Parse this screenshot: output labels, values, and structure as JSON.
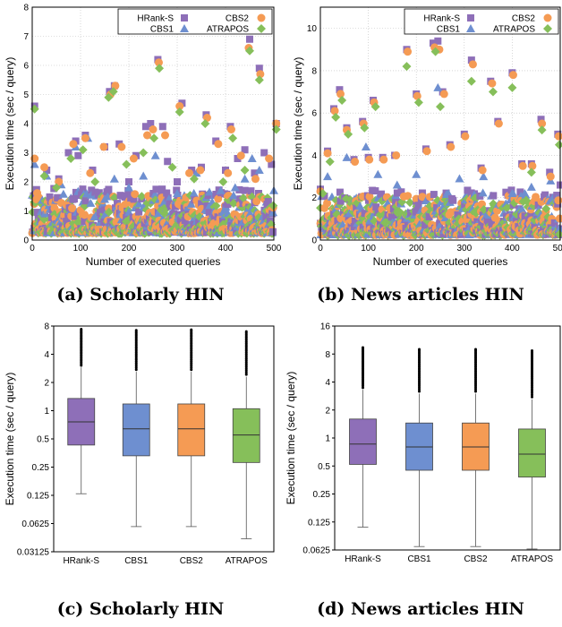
{
  "captions": {
    "a": "(a) Scholarly HIN",
    "b": "(b) News articles HIN",
    "c": "(c) Scholarly HIN",
    "d": "(d) News articles HIN"
  },
  "colors": {
    "HRank-S": "#8e6fb8",
    "CBS1": "#6e8fd0",
    "CBS2": "#f59b54",
    "ATRAPOS": "#86bf5a",
    "grid": "#bdbdbd"
  },
  "chart_data": [
    {
      "id": "a",
      "type": "scatter",
      "xlabel": "Number of executed queries",
      "ylabel": "Execution time (sec / query)",
      "xlim": [
        0,
        500
      ],
      "ylim": [
        0,
        8
      ],
      "xticks": [
        0,
        100,
        200,
        300,
        400,
        500
      ],
      "yticks": [
        0,
        1,
        2,
        3,
        4,
        5,
        6,
        7,
        8
      ],
      "grid": true,
      "legend_position": "top-right",
      "series": [
        {
          "name": "HRank-S",
          "marker": "square",
          "points": [
            [
              5,
              4.6
            ],
            [
              30,
              2.4
            ],
            [
              55,
              2.1
            ],
            [
              75,
              3.0
            ],
            [
              90,
              3.4
            ],
            [
              95,
              2.9
            ],
            [
              110,
              3.6
            ],
            [
              125,
              2.4
            ],
            [
              150,
              3.2
            ],
            [
              160,
              5.1
            ],
            [
              170,
              5.3
            ],
            [
              180,
              3.3
            ],
            [
              200,
              2.0
            ],
            [
              215,
              2.9
            ],
            [
              235,
              3.9
            ],
            [
              245,
              4.0
            ],
            [
              260,
              6.2
            ],
            [
              270,
              3.9
            ],
            [
              280,
              2.7
            ],
            [
              300,
              2.0
            ],
            [
              310,
              4.7
            ],
            [
              330,
              2.4
            ],
            [
              350,
              2.5
            ],
            [
              360,
              4.3
            ],
            [
              380,
              3.4
            ],
            [
              400,
              2.4
            ],
            [
              410,
              3.9
            ],
            [
              425,
              2.8
            ],
            [
              440,
              3.1
            ],
            [
              450,
              6.9
            ],
            [
              460,
              2.3
            ],
            [
              470,
              5.9
            ],
            [
              480,
              3.0
            ],
            [
              495,
              2.6
            ],
            [
              505,
              4.0
            ]
          ]
        },
        {
          "name": "CBS1",
          "marker": "triangle",
          "points": [
            [
              5,
              2.6
            ],
            [
              30,
              2.2
            ],
            [
              60,
              1.9
            ],
            [
              90,
              3.2
            ],
            [
              115,
              3.5
            ],
            [
              150,
              1.4
            ],
            [
              170,
              2.1
            ],
            [
              200,
              1.8
            ],
            [
              230,
              2.2
            ],
            [
              255,
              2.9
            ],
            [
              300,
              1.6
            ],
            [
              340,
              2.3
            ],
            [
              390,
              1.7
            ],
            [
              420,
              1.8
            ],
            [
              440,
              2.1
            ],
            [
              455,
              2.8
            ],
            [
              470,
              2.4
            ],
            [
              500,
              1.7
            ]
          ]
        },
        {
          "name": "CBS2",
          "marker": "circle",
          "points": [
            [
              5,
              2.8
            ],
            [
              25,
              2.5
            ],
            [
              55,
              2.0
            ],
            [
              85,
              3.3
            ],
            [
              110,
              3.5
            ],
            [
              120,
              2.3
            ],
            [
              148,
              3.2
            ],
            [
              162,
              5.0
            ],
            [
              172,
              5.3
            ],
            [
              185,
              3.2
            ],
            [
              210,
              2.8
            ],
            [
              238,
              3.6
            ],
            [
              250,
              3.8
            ],
            [
              262,
              6.1
            ],
            [
              275,
              3.6
            ],
            [
              305,
              4.6
            ],
            [
              325,
              2.3
            ],
            [
              348,
              2.4
            ],
            [
              362,
              4.2
            ],
            [
              385,
              3.3
            ],
            [
              405,
              2.3
            ],
            [
              412,
              3.8
            ],
            [
              432,
              2.9
            ],
            [
              448,
              6.6
            ],
            [
              462,
              2.1
            ],
            [
              472,
              5.7
            ],
            [
              490,
              2.8
            ],
            [
              505,
              4.0
            ]
          ]
        },
        {
          "name": "ATRAPOS",
          "marker": "diamond",
          "points": [
            [
              5,
              4.5
            ],
            [
              25,
              2.2
            ],
            [
              50,
              1.8
            ],
            [
              80,
              2.8
            ],
            [
              105,
              3.1
            ],
            [
              130,
              2.0
            ],
            [
              158,
              4.9
            ],
            [
              168,
              5.1
            ],
            [
              195,
              2.6
            ],
            [
              230,
              3.0
            ],
            [
              252,
              3.5
            ],
            [
              263,
              5.9
            ],
            [
              290,
              2.5
            ],
            [
              305,
              4.4
            ],
            [
              335,
              2.1
            ],
            [
              358,
              4.0
            ],
            [
              395,
              2.0
            ],
            [
              415,
              3.5
            ],
            [
              440,
              2.4
            ],
            [
              450,
              6.5
            ],
            [
              470,
              5.5
            ],
            [
              505,
              3.8
            ]
          ]
        }
      ]
    },
    {
      "id": "b",
      "type": "scatter",
      "xlabel": "Number of executed queries",
      "ylabel": "Execution time (sec / query)",
      "xlim": [
        0,
        500
      ],
      "ylim": [
        0,
        11
      ],
      "xticks": [
        0,
        100,
        200,
        300,
        400,
        500
      ],
      "yticks": [
        0,
        2,
        4,
        6,
        8,
        10
      ],
      "grid": true,
      "legend_position": "top-right",
      "series": [
        {
          "name": "HRank-S",
          "marker": "square",
          "points": [
            [
              0,
              2.4
            ],
            [
              15,
              4.2
            ],
            [
              28,
              6.2
            ],
            [
              40,
              7.1
            ],
            [
              55,
              5.3
            ],
            [
              70,
              3.8
            ],
            [
              88,
              5.6
            ],
            [
              100,
              3.9
            ],
            [
              110,
              6.6
            ],
            [
              130,
              3.9
            ],
            [
              155,
              4.0
            ],
            [
              180,
              9.0
            ],
            [
              200,
              6.9
            ],
            [
              220,
              4.3
            ],
            [
              235,
              9.3
            ],
            [
              245,
              9.4
            ],
            [
              255,
              7.0
            ],
            [
              270,
              4.5
            ],
            [
              300,
              5.0
            ],
            [
              315,
              8.5
            ],
            [
              335,
              3.4
            ],
            [
              355,
              7.5
            ],
            [
              370,
              5.6
            ],
            [
              400,
              7.9
            ],
            [
              420,
              3.6
            ],
            [
              440,
              3.6
            ],
            [
              460,
              5.7
            ],
            [
              478,
              3.2
            ],
            [
              495,
              5.0
            ],
            [
              500,
              2.6
            ]
          ]
        },
        {
          "name": "CBS1",
          "marker": "triangle",
          "points": [
            [
              15,
              3.0
            ],
            [
              55,
              3.9
            ],
            [
              95,
              4.4
            ],
            [
              120,
              3.1
            ],
            [
              160,
              2.6
            ],
            [
              200,
              3.1
            ],
            [
              245,
              7.2
            ],
            [
              290,
              2.9
            ],
            [
              340,
              3.0
            ],
            [
              400,
              2.2
            ],
            [
              440,
              2.5
            ],
            [
              480,
              2.8
            ]
          ]
        },
        {
          "name": "CBS2",
          "marker": "circle",
          "points": [
            [
              0,
              2.3
            ],
            [
              15,
              4.1
            ],
            [
              30,
              6.1
            ],
            [
              42,
              6.9
            ],
            [
              55,
              5.2
            ],
            [
              72,
              3.7
            ],
            [
              90,
              5.5
            ],
            [
              102,
              3.8
            ],
            [
              112,
              6.5
            ],
            [
              132,
              3.8
            ],
            [
              158,
              4.0
            ],
            [
              182,
              8.9
            ],
            [
              202,
              6.8
            ],
            [
              222,
              4.2
            ],
            [
              238,
              9.1
            ],
            [
              248,
              9.0
            ],
            [
              258,
              6.9
            ],
            [
              272,
              4.4
            ],
            [
              302,
              4.9
            ],
            [
              318,
              8.3
            ],
            [
              338,
              3.3
            ],
            [
              358,
              7.4
            ],
            [
              372,
              5.5
            ],
            [
              402,
              7.8
            ],
            [
              422,
              3.5
            ],
            [
              442,
              3.5
            ],
            [
              462,
              5.5
            ],
            [
              480,
              3.0
            ],
            [
              497,
              4.9
            ]
          ]
        },
        {
          "name": "ATRAPOS",
          "marker": "diamond",
          "points": [
            [
              5,
              2.2
            ],
            [
              20,
              3.7
            ],
            [
              32,
              5.8
            ],
            [
              45,
              6.6
            ],
            [
              58,
              5.0
            ],
            [
              92,
              5.3
            ],
            [
              115,
              6.3
            ],
            [
              180,
              8.2
            ],
            [
              205,
              6.5
            ],
            [
              240,
              8.9
            ],
            [
              250,
              6.3
            ],
            [
              315,
              7.5
            ],
            [
              360,
              7.0
            ],
            [
              400,
              7.2
            ],
            [
              440,
              3.2
            ],
            [
              462,
              5.2
            ],
            [
              498,
              4.5
            ]
          ]
        }
      ]
    },
    {
      "id": "c",
      "type": "box",
      "ylabel": "Execution time (sec / query)",
      "yscale": "log2",
      "ylim": [
        0.03125,
        8
      ],
      "yticks": [
        "0.03125",
        "0.0625",
        "0.125",
        "0.25",
        "0.5",
        "1",
        "2",
        "4",
        "8"
      ],
      "categories": [
        "HRank-S",
        "CBS1",
        "CBS2",
        "ATRAPOS"
      ],
      "grid": false,
      "boxes": [
        {
          "name": "HRank-S",
          "whisker_low": 0.13,
          "q1": 0.43,
          "median": 0.76,
          "q3": 1.35,
          "whisker_high": 2.9,
          "outlier_max": 7.4
        },
        {
          "name": "CBS1",
          "whisker_low": 0.058,
          "q1": 0.33,
          "median": 0.64,
          "q3": 1.18,
          "whisker_high": 2.6,
          "outlier_max": 7.2
        },
        {
          "name": "CBS2",
          "whisker_low": 0.058,
          "q1": 0.33,
          "median": 0.64,
          "q3": 1.18,
          "whisker_high": 2.6,
          "outlier_max": 7.3
        },
        {
          "name": "ATRAPOS",
          "whisker_low": 0.043,
          "q1": 0.28,
          "median": 0.55,
          "q3": 1.05,
          "whisker_high": 2.3,
          "outlier_max": 7.0
        }
      ]
    },
    {
      "id": "d",
      "type": "box",
      "ylabel": "Execution time (sec / query)",
      "yscale": "log2",
      "ylim": [
        0.0625,
        16
      ],
      "yticks": [
        "0.0625",
        "0.125",
        "0.25",
        "0.5",
        "1",
        "2",
        "4",
        "8",
        "16"
      ],
      "categories": [
        "HRank-S",
        "CBS1",
        "CBS2",
        "ATRAPOS"
      ],
      "grid": false,
      "boxes": [
        {
          "name": "HRank-S",
          "whisker_low": 0.11,
          "q1": 0.52,
          "median": 0.86,
          "q3": 1.6,
          "whisker_high": 3.3,
          "outlier_max": 9.4
        },
        {
          "name": "CBS1",
          "whisker_low": 0.068,
          "q1": 0.45,
          "median": 0.8,
          "q3": 1.45,
          "whisker_high": 3.0,
          "outlier_max": 9.0
        },
        {
          "name": "CBS2",
          "whisker_low": 0.068,
          "q1": 0.45,
          "median": 0.8,
          "q3": 1.45,
          "whisker_high": 3.0,
          "outlier_max": 9.0
        },
        {
          "name": "ATRAPOS",
          "whisker_low": 0.064,
          "q1": 0.38,
          "median": 0.67,
          "q3": 1.25,
          "whisker_high": 2.6,
          "outlier_max": 8.7
        }
      ]
    }
  ]
}
